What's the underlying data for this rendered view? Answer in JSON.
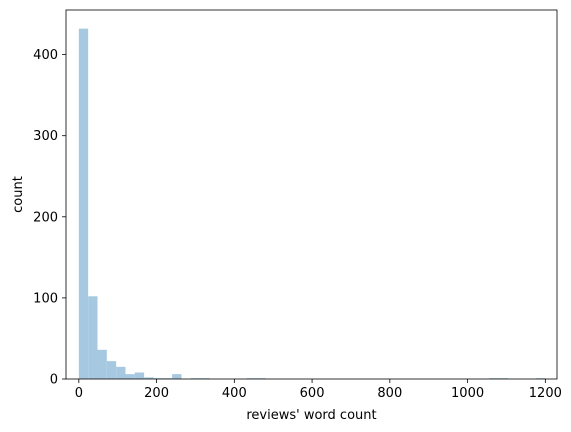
{
  "chart_data": {
    "type": "histogram",
    "title": "",
    "xlabel": "reviews' word count",
    "ylabel": "count",
    "xlim": [
      -33,
      1230
    ],
    "ylim": [
      0,
      455
    ],
    "xticks": [
      0,
      200,
      400,
      600,
      800,
      1000,
      1200
    ],
    "yticks": [
      0,
      100,
      200,
      300,
      400
    ],
    "bin_edges": [
      0,
      24,
      48,
      72,
      96,
      120,
      144,
      168,
      192,
      216,
      240,
      264,
      288,
      312,
      336,
      360,
      384,
      408,
      432,
      456,
      480,
      504,
      528,
      552,
      576,
      600,
      624,
      648,
      672,
      696,
      720,
      744,
      768,
      792,
      816,
      840,
      864,
      888,
      912,
      936,
      960,
      984,
      1008,
      1032,
      1056,
      1080,
      1104,
      1128,
      1152,
      1176,
      1200
    ],
    "counts": [
      432,
      102,
      36,
      22,
      15,
      6,
      8,
      2,
      1,
      1,
      6,
      0,
      1,
      1,
      0,
      0,
      0,
      0,
      1,
      1,
      0,
      0,
      0,
      0,
      0,
      0,
      0,
      0,
      0,
      0,
      0,
      0,
      0,
      0,
      0,
      0,
      0,
      0,
      0,
      0,
      0,
      0,
      0,
      0,
      1,
      1,
      0,
      0,
      0,
      1
    ],
    "bar_color": "#a6c8e0",
    "grid": false,
    "legend": "none"
  }
}
